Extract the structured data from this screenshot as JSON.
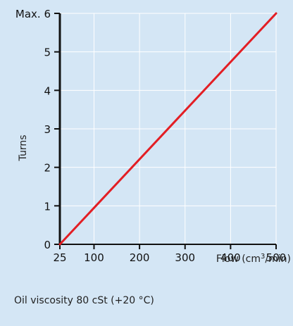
{
  "chart_data": {
    "type": "line",
    "xlabel": "Flow (cm",
    "xlabel_sup": "3",
    "xlabel_tail": "/min)",
    "ylabel": "Turns",
    "x_ticks": [
      25,
      100,
      200,
      300,
      400,
      500
    ],
    "x_tick_labels": [
      "25",
      "100",
      "200",
      "300",
      "400",
      "500"
    ],
    "y_ticks": [
      0,
      1,
      2,
      3,
      4,
      5,
      6
    ],
    "y_tick_labels": [
      "0",
      "1",
      "2",
      "3",
      "4",
      "5",
      "Max. 6"
    ],
    "xlim": [
      25,
      500
    ],
    "ylim": [
      0,
      6
    ],
    "grid": true,
    "series": [
      {
        "x": [
          25,
          500
        ],
        "y": [
          0,
          6
        ],
        "color": "#e31e24"
      }
    ],
    "note": "Oil viscosity 80 cSt (+20 °C)"
  }
}
